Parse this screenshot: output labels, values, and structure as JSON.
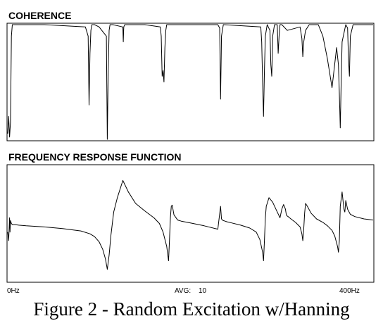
{
  "chart_data": [
    {
      "type": "line",
      "title": "COHERENCE",
      "x_unit": "Hz",
      "xlim": [
        0,
        400
      ],
      "ylim": [
        0,
        1
      ],
      "grid": false,
      "series": [
        {
          "x": [
            0,
            1,
            2,
            3,
            4,
            5,
            7,
            10,
            40,
            85,
            88,
            89,
            90,
            91,
            92,
            95,
            100,
            103,
            108,
            109,
            110,
            111,
            112,
            115,
            126,
            126.5,
            127,
            128,
            129,
            150,
            167,
            168,
            169,
            170,
            171,
            172,
            173,
            174,
            180,
            230,
            232,
            233,
            234,
            236,
            277,
            278,
            279,
            280,
            281,
            282,
            284,
            287,
            288,
            289,
            290,
            292,
            295,
            296,
            297,
            298,
            300,
            306,
            320,
            322,
            323,
            324,
            326,
            330,
            340,
            345,
            350,
            355,
            360,
            362,
            363,
            364,
            365,
            366,
            370,
            372,
            373,
            374,
            375,
            378,
            400
          ],
          "y": [
            0.05,
            0.2,
            0.02,
            0.15,
            0.9,
            1.0,
            1.0,
            1.0,
            1.0,
            0.98,
            0.9,
            0.3,
            0.75,
            0.95,
            1.0,
            1.0,
            0.98,
            0.95,
            0.9,
            0.0,
            0.6,
            0.95,
            1.0,
            1.0,
            0.98,
            0.85,
            0.98,
            1.0,
            1.0,
            1.0,
            0.98,
            0.9,
            0.55,
            0.6,
            0.5,
            0.8,
            0.95,
            1.0,
            1.0,
            1.0,
            0.97,
            0.35,
            0.9,
            1.0,
            0.98,
            0.85,
            0.5,
            0.2,
            0.6,
            0.9,
            1.0,
            0.95,
            0.65,
            0.55,
            0.9,
            1.0,
            1.0,
            0.75,
            0.9,
            1.0,
            1.0,
            0.95,
            0.98,
            0.88,
            0.72,
            0.85,
            0.95,
            1.0,
            1.0,
            0.9,
            0.7,
            0.45,
            0.8,
            0.65,
            0.4,
            0.1,
            0.5,
            0.85,
            1.0,
            0.97,
            0.7,
            0.55,
            0.9,
            1.0,
            1.0
          ]
        }
      ]
    },
    {
      "type": "line",
      "title": "FREQUENCY RESPONSE FUNCTION",
      "x_unit": "Hz",
      "xlim": [
        0,
        400
      ],
      "ylim": [
        -1,
        1
      ],
      "grid": false,
      "x_tick_labels": [
        "0Hz",
        "400Hz"
      ],
      "series": [
        {
          "x": [
            0,
            1,
            2,
            2.5,
            3,
            4,
            5,
            8,
            12,
            20,
            40,
            60,
            80,
            90,
            95,
            100,
            104,
            107,
            109,
            111,
            113,
            116,
            120,
            126,
            132,
            140,
            150,
            160,
            166,
            170,
            174,
            176,
            177,
            178,
            179,
            180,
            182,
            186,
            190,
            200,
            215,
            230,
            233,
            234,
            235,
            236,
            238,
            240,
            245,
            255,
            265,
            272,
            276,
            279,
            280,
            281,
            282,
            283,
            286,
            290,
            295,
            298,
            300,
            302,
            304,
            305,
            306,
            307,
            310,
            315,
            320,
            322,
            323,
            324,
            325,
            326,
            328,
            332,
            338,
            345,
            350,
            355,
            358,
            361,
            362,
            363,
            364,
            366,
            368,
            369,
            370,
            372,
            375,
            380,
            390,
            400
          ],
          "y": [
            -0.15,
            -0.3,
            0.1,
            -0.15,
            0.05,
            0.0,
            -0.02,
            -0.02,
            -0.03,
            -0.04,
            -0.06,
            -0.09,
            -0.13,
            -0.18,
            -0.23,
            -0.32,
            -0.45,
            -0.62,
            -0.8,
            -0.55,
            -0.2,
            0.2,
            0.45,
            0.75,
            0.55,
            0.35,
            0.22,
            0.1,
            0.0,
            -0.15,
            -0.4,
            -0.65,
            -0.3,
            0.1,
            0.3,
            0.32,
            0.15,
            0.06,
            0.04,
            0.01,
            -0.04,
            -0.1,
            0.3,
            0.08,
            0.06,
            0.05,
            0.04,
            0.03,
            0.01,
            -0.03,
            -0.08,
            -0.15,
            -0.28,
            -0.5,
            -0.65,
            -0.3,
            0.1,
            0.3,
            0.45,
            0.37,
            0.2,
            0.1,
            0.25,
            0.33,
            0.25,
            0.15,
            0.13,
            0.12,
            0.08,
            0.02,
            -0.06,
            -0.18,
            -0.3,
            -0.1,
            0.18,
            0.35,
            0.3,
            0.18,
            0.08,
            0.02,
            -0.04,
            -0.12,
            -0.22,
            -0.4,
            -0.5,
            -0.3,
            0.3,
            0.55,
            0.25,
            0.2,
            0.4,
            0.25,
            0.16,
            0.12,
            0.08,
            0.06
          ]
        }
      ]
    }
  ],
  "footer": {
    "x_start_label": "0Hz",
    "avg_label": "AVG:",
    "avg_value": "10",
    "x_end_label": "400Hz"
  },
  "caption": "Figure 2 - Random Excitation w/Hanning"
}
